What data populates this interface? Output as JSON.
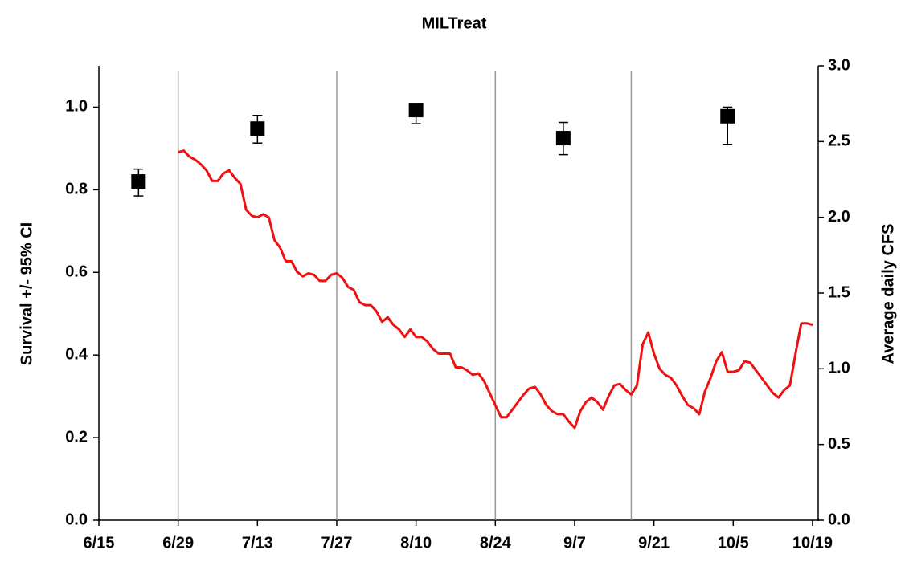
{
  "chart_data": {
    "type": "scatter",
    "title": "MILTreat",
    "ylabel": "Survival +/- 95% CI",
    "y2label": "Average daily CFS",
    "xlim": [
      "6/15",
      "10/20"
    ],
    "xticks": [
      "6/15",
      "6/29",
      "7/13",
      "7/27",
      "8/10",
      "8/24",
      "9/7",
      "9/21",
      "10/5",
      "10/19"
    ],
    "vlines": [
      "6/29",
      "7/27",
      "8/24",
      "9/17"
    ],
    "vline_color": "#999999",
    "ylim": [
      0,
      1.1
    ],
    "yticks": [
      {
        "value": 0,
        "label": "0.0"
      },
      0.2,
      0.4,
      0.6,
      0.8,
      {
        "value": 1.0,
        "label": "1.0"
      }
    ],
    "y2lim": [
      0,
      3.0
    ],
    "y2ticks": [
      {
        "value": 0,
        "label": "0.0"
      },
      0.5,
      {
        "value": 1.0,
        "label": "1.0"
      },
      1.5,
      {
        "value": 2.0,
        "label": "2.0"
      },
      2.5,
      {
        "value": 3.0,
        "label": "3.0"
      }
    ],
    "series": [
      {
        "type": "scatter",
        "color": "#000000",
        "x": [
          "6/22",
          "7/13",
          "8/10",
          "9/5",
          "10/4"
        ],
        "values": [
          0.82,
          0.948,
          0.993,
          0.925,
          0.978
        ],
        "lower": [
          0.785,
          0.913,
          0.96,
          0.885,
          0.91
        ],
        "upper": [
          0.85,
          0.98,
          1.0,
          0.963,
          1.0
        ]
      },
      {
        "type": "line",
        "axis": "y2",
        "color": "#ee1111",
        "x": [
          "6/29",
          "6/30",
          "7/1",
          "7/2",
          "7/3",
          "7/4",
          "7/5",
          "7/6",
          "7/7",
          "7/8",
          "7/9",
          "7/10",
          "7/11",
          "7/12",
          "7/13",
          "7/14",
          "7/15",
          "7/16",
          "7/17",
          "7/18",
          "7/19",
          "7/20",
          "7/21",
          "7/22",
          "7/23",
          "7/24",
          "7/25",
          "7/26",
          "7/27",
          "7/28",
          "7/29",
          "7/30",
          "7/31",
          "8/1",
          "8/2",
          "8/3",
          "8/4",
          "8/5",
          "8/6",
          "8/7",
          "8/8",
          "8/9",
          "8/10",
          "8/11",
          "8/12",
          "8/13",
          "8/14",
          "8/15",
          "8/16",
          "8/17",
          "8/18",
          "8/19",
          "8/20",
          "8/21",
          "8/22",
          "8/23",
          "8/24",
          "8/25",
          "8/26",
          "8/27",
          "8/28",
          "8/29",
          "8/30",
          "8/31",
          "9/1",
          "9/2",
          "9/3",
          "9/4",
          "9/5",
          "9/6",
          "9/7",
          "9/8",
          "9/9",
          "9/10",
          "9/11",
          "9/12",
          "9/13",
          "9/14",
          "9/15",
          "9/16",
          "9/17",
          "9/18",
          "9/19",
          "9/20",
          "9/21",
          "9/22",
          "9/23",
          "9/24",
          "9/25",
          "9/26",
          "9/27",
          "9/28",
          "9/29",
          "9/30",
          "10/1",
          "10/2",
          "10/3",
          "10/4",
          "10/5",
          "10/6",
          "10/7",
          "10/8",
          "10/9",
          "10/10",
          "10/11",
          "10/12",
          "10/13",
          "10/14",
          "10/15",
          "10/16",
          "10/17",
          "10/18",
          "10/19"
        ],
        "values": [
          2.43,
          2.44,
          2.4,
          2.38,
          2.35,
          2.31,
          2.24,
          2.24,
          2.29,
          2.31,
          2.26,
          2.22,
          2.05,
          2.01,
          2.0,
          2.02,
          2.0,
          1.85,
          1.8,
          1.71,
          1.71,
          1.64,
          1.61,
          1.63,
          1.62,
          1.58,
          1.58,
          1.62,
          1.63,
          1.6,
          1.54,
          1.52,
          1.44,
          1.42,
          1.42,
          1.38,
          1.31,
          1.34,
          1.29,
          1.26,
          1.21,
          1.26,
          1.21,
          1.21,
          1.18,
          1.13,
          1.1,
          1.1,
          1.1,
          1.01,
          1.01,
          0.99,
          0.96,
          0.97,
          0.92,
          0.84,
          0.76,
          0.68,
          0.68,
          0.73,
          0.78,
          0.83,
          0.87,
          0.88,
          0.83,
          0.76,
          0.72,
          0.7,
          0.7,
          0.65,
          0.61,
          0.72,
          0.78,
          0.81,
          0.78,
          0.73,
          0.82,
          0.89,
          0.9,
          0.86,
          0.83,
          0.89,
          1.16,
          1.24,
          1.1,
          1.0,
          0.96,
          0.94,
          0.89,
          0.82,
          0.76,
          0.74,
          0.7,
          0.85,
          0.94,
          1.05,
          1.11,
          0.98,
          0.98,
          0.99,
          1.05,
          1.04,
          0.99,
          0.94,
          0.89,
          0.84,
          0.81,
          0.86,
          0.89,
          1.1,
          1.3,
          1.3,
          1.29
        ]
      }
    ]
  }
}
